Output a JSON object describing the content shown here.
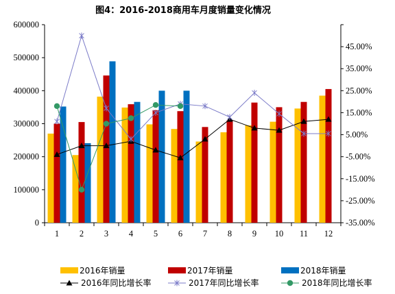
{
  "chart_data": {
    "type": "bar",
    "title": "图4：2016-2018商用车月度销量变化情况",
    "categories": [
      "1",
      "2",
      "3",
      "4",
      "5",
      "6",
      "7",
      "8",
      "9",
      "10",
      "11",
      "12"
    ],
    "left_axis": {
      "ylim": [
        0,
        600000
      ],
      "ticks": [
        "0",
        "100000",
        "200000",
        "300000",
        "400000",
        "500000",
        "600000"
      ]
    },
    "right_axis": {
      "ylim": [
        -0.35,
        0.55
      ],
      "tick_values": [
        -0.35,
        -0.25,
        -0.15,
        -0.05,
        0.05,
        0.15,
        0.25,
        0.35,
        0.45
      ],
      "ticks": [
        "-35.00%",
        "-25.00%",
        "-15.00%",
        "-5.00%",
        "5.00%",
        "15.00%",
        "25.00%",
        "35.00%",
        "45.00%"
      ]
    },
    "series": [
      {
        "name": "2016年销量",
        "kind": "bar",
        "axis": "left",
        "color": "#FFC000",
        "values": [
          270000,
          205000,
          382000,
          349000,
          298000,
          284000,
          246000,
          274000,
          295000,
          306000,
          346000,
          385000
        ]
      },
      {
        "name": "2017年销量",
        "kind": "bar",
        "axis": "left",
        "color": "#C00000",
        "values": [
          300000,
          305000,
          446000,
          359000,
          341000,
          338000,
          290000,
          310000,
          364000,
          350000,
          366000,
          405000
        ]
      },
      {
        "name": "2018年销量",
        "kind": "bar",
        "axis": "left",
        "color": "#0070C0",
        "values": [
          352000,
          241000,
          489000,
          366000,
          400000,
          400000,
          null,
          null,
          null,
          null,
          null,
          null
        ]
      },
      {
        "name": "2016年同比增长率",
        "kind": "line",
        "axis": "right",
        "color": "#000000",
        "marker": "triangle",
        "values": [
          -0.04,
          0.0,
          0.0,
          0.02,
          -0.02,
          -0.055,
          0.03,
          0.12,
          0.08,
          0.07,
          0.11,
          0.12
        ]
      },
      {
        "name": "2017年同比增长率",
        "kind": "line",
        "axis": "right",
        "color": "#7B7BC8",
        "marker": "star",
        "values": [
          0.11,
          0.5,
          0.17,
          0.03,
          0.15,
          0.19,
          0.18,
          0.13,
          0.24,
          0.145,
          0.055,
          0.055
        ]
      },
      {
        "name": "2018年同比增长率",
        "kind": "line",
        "axis": "right",
        "color": "#339966",
        "marker": "circle",
        "values": [
          0.18,
          -0.2,
          0.1,
          0.125,
          0.185,
          0.18,
          null,
          null,
          null,
          null,
          null,
          null
        ]
      }
    ],
    "legend_position": "bottom",
    "grid": false
  }
}
